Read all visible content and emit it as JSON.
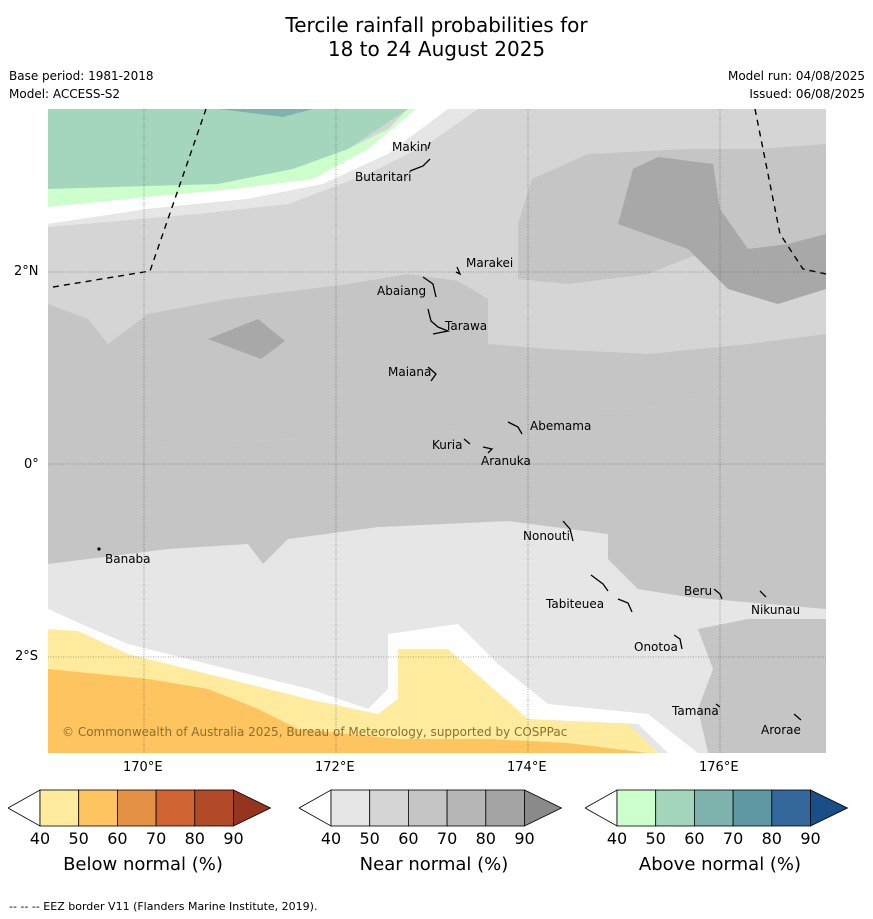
{
  "header": {
    "title_line1": "Tercile rainfall probabilities for",
    "title_line2": "18 to 24 August 2025",
    "base_period": "Base period: 1981-2018",
    "model": "Model: ACCESS-S2",
    "model_run": "Model run: 04/08/2025",
    "issued": "Issued: 06/08/2025"
  },
  "map": {
    "lat_labels": [
      "2°N",
      "0°",
      "2°S"
    ],
    "lon_labels": [
      "170°E",
      "172°E",
      "174°E",
      "176°E"
    ],
    "places": [
      "Makin",
      "Butaritari",
      "Marakei",
      "Abaiang",
      "Tarawa",
      "Maiana",
      "Abemama",
      "Kuria",
      "Aranuka",
      "Nonouti",
      "Banaba",
      "Beru",
      "Nikunau",
      "Tabiteuea",
      "Onotoa",
      "Tamana",
      "Arorae"
    ],
    "copyright": "© Commonwealth of Australia 2025, Bureau of Meteorology, supported by COSPPac"
  },
  "legend": {
    "ticks": [
      "40",
      "50",
      "60",
      "70",
      "80",
      "90"
    ],
    "below": {
      "label": "Below normal (%)",
      "colors": [
        "#ffffff",
        "#ffeb9e",
        "#fec45f",
        "#e49145",
        "#cf6331",
        "#b24a27",
        "#953520"
      ]
    },
    "near": {
      "label": "Near normal (%)",
      "colors": [
        "#ffffff",
        "#e6e6e6",
        "#d5d5d5",
        "#c5c5c5",
        "#b6b6b6",
        "#a4a4a4",
        "#8a8a8a"
      ]
    },
    "above": {
      "label": "Above normal (%)",
      "colors": [
        "#ffffff",
        "#ccffcc",
        "#a4d6bd",
        "#7fb4ae",
        "#5f97a3",
        "#34679b",
        "#1b4d87"
      ]
    }
  },
  "footer": {
    "eez_note": "--  --  -- EEZ border V11 (Flanders Marine Institute, 2019)."
  }
}
